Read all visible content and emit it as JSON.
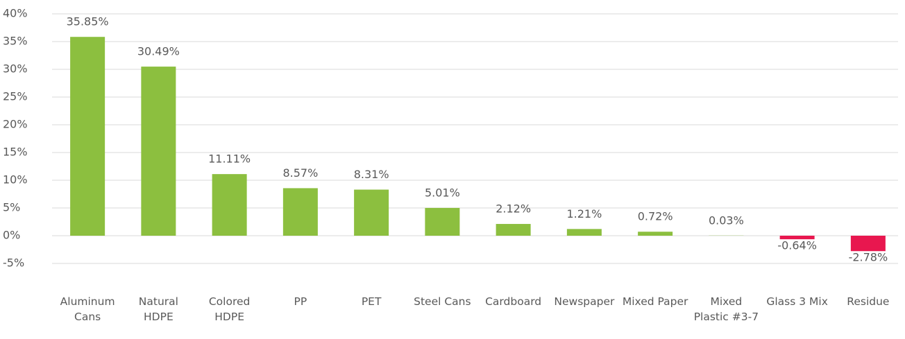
{
  "chart_data": {
    "type": "bar",
    "categories": [
      "Aluminum Cans",
      "Natural HDPE",
      "Colored HDPE",
      "PP",
      "PET",
      "Steel Cans",
      "Cardboard",
      "Newspaper",
      "Mixed Paper",
      "Mixed Plastic #3-7",
      "Glass 3 Mix",
      "Residue"
    ],
    "values": [
      35.85,
      30.49,
      11.11,
      8.57,
      8.31,
      5.01,
      2.12,
      1.21,
      0.72,
      0.03,
      -0.64,
      -2.78
    ],
    "value_labels": [
      "35.85%",
      "30.49%",
      "11.11%",
      "8.57%",
      "8.31%",
      "5.01%",
      "2.12%",
      "1.21%",
      "0.72%",
      "0.03%",
      "-0.64%",
      "-2.78%"
    ],
    "color": "#8cbf3f",
    "negative_color": "#e8174f",
    "ylim": [
      -5,
      40
    ],
    "yticks": [
      {
        "value": -5,
        "label": "-5%"
      },
      {
        "value": 0,
        "label": "0%"
      },
      {
        "value": 5,
        "label": "5%"
      },
      {
        "value": 10,
        "label": "10%"
      },
      {
        "value": 15,
        "label": "15%"
      },
      {
        "value": 20,
        "label": "20%"
      },
      {
        "value": 25,
        "label": "25%"
      },
      {
        "value": 30,
        "label": "30%"
      },
      {
        "value": 35,
        "label": "35%"
      },
      {
        "value": 40,
        "label": "40%"
      }
    ],
    "grid": true
  }
}
